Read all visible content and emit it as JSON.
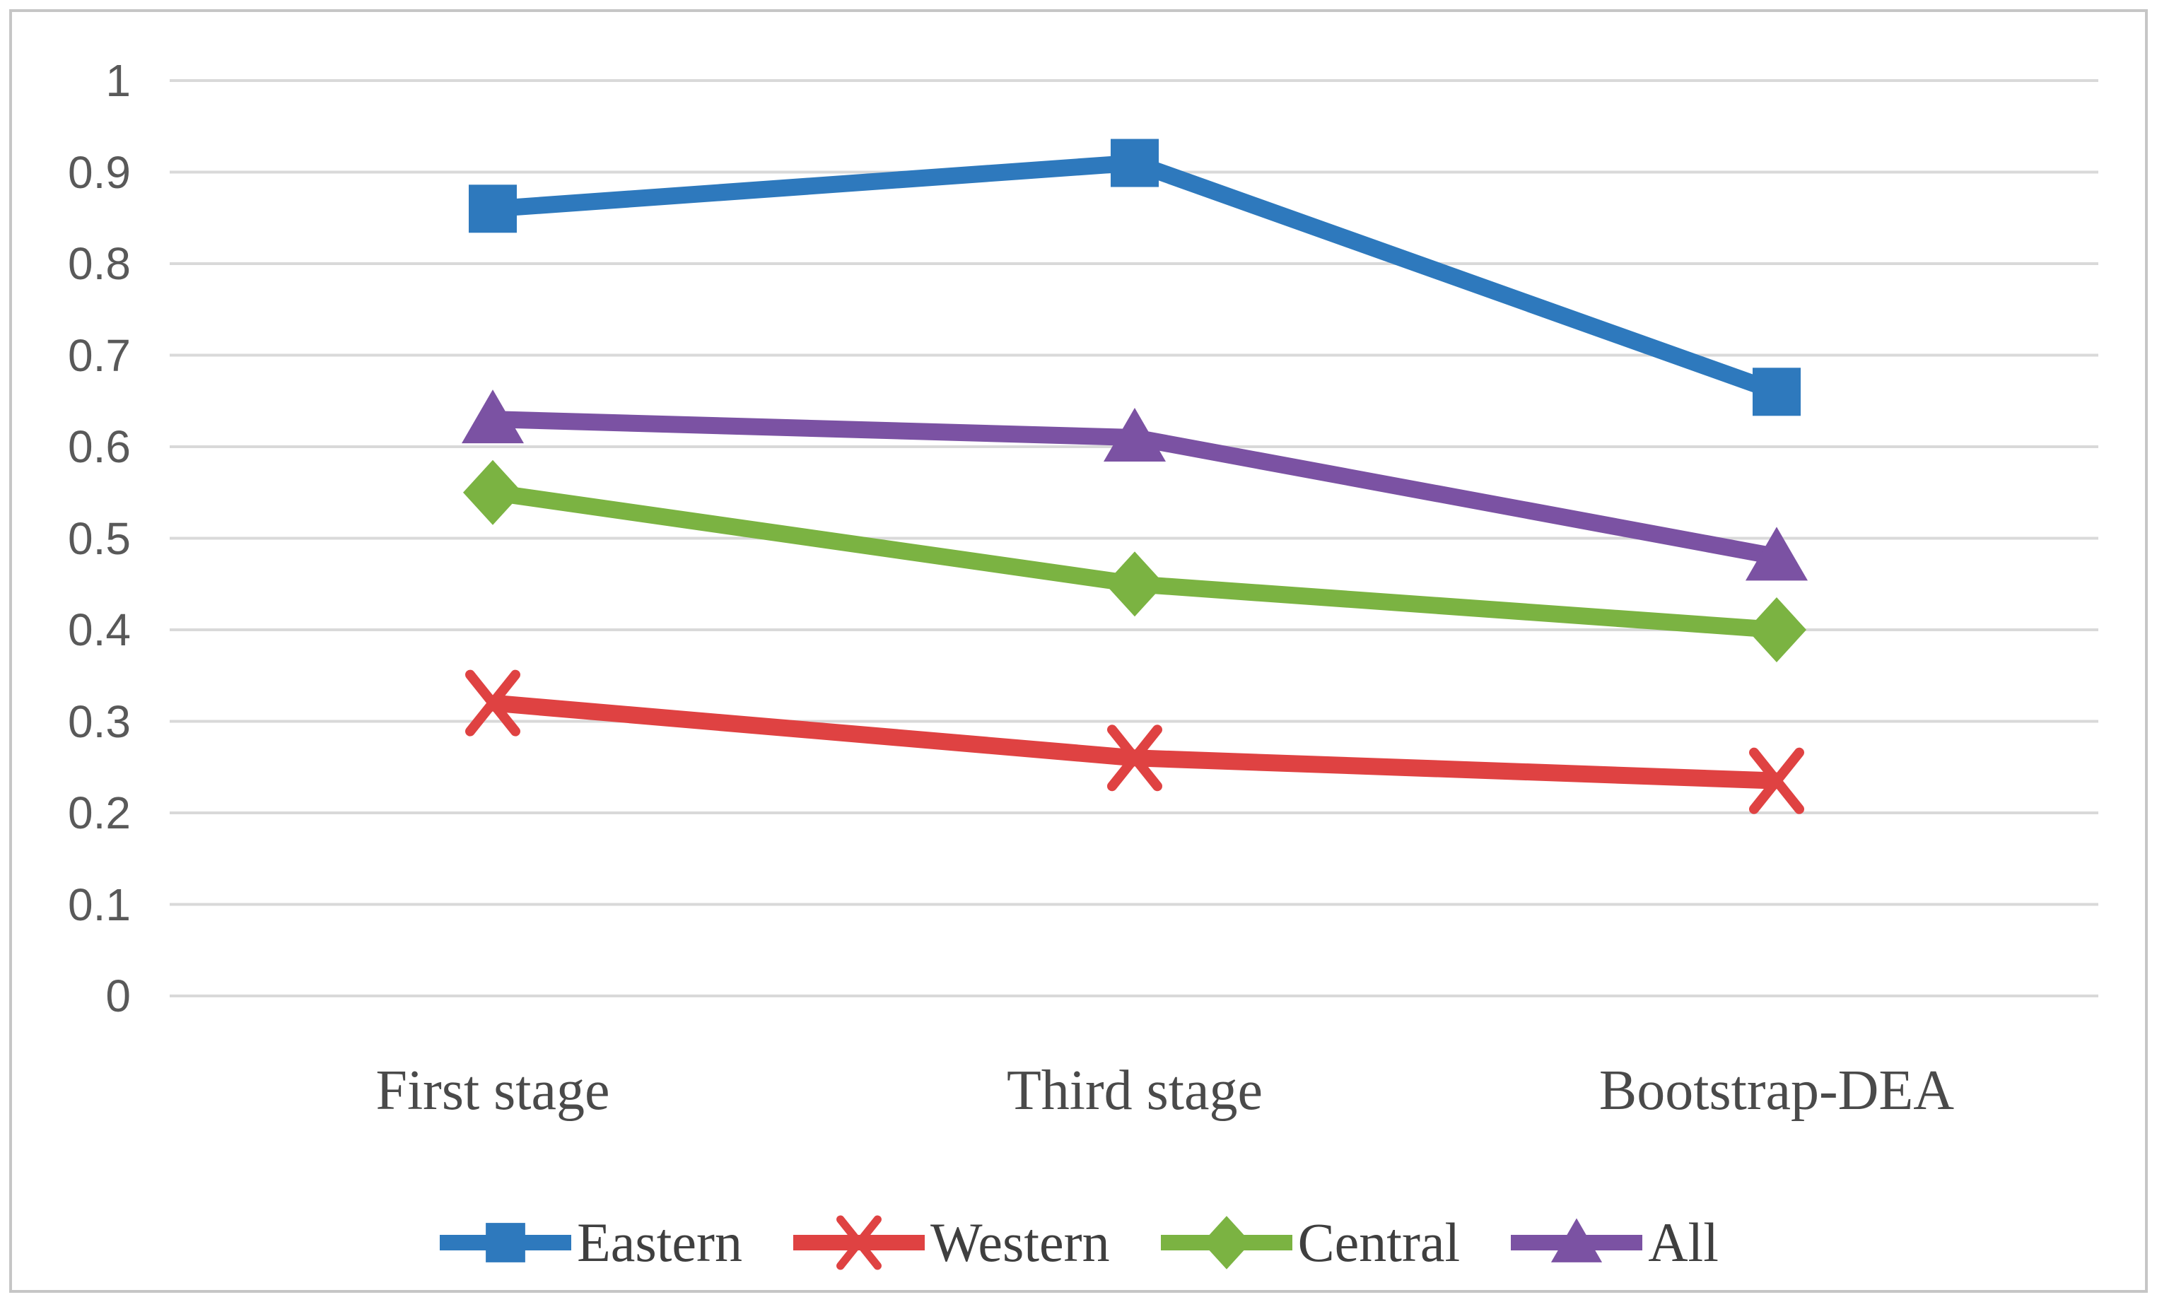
{
  "figure": {
    "kind": "excel-style line chart figure",
    "background": "#ffffff",
    "border_color": "#c6c6c6"
  },
  "chart_data": {
    "type": "line",
    "title": "",
    "xlabel": "",
    "ylabel": "",
    "categories": [
      "First stage",
      "Third stage",
      "Bootstrap-DEA"
    ],
    "series": [
      {
        "name": "Eastern",
        "color": "#2e79bd",
        "marker": "square",
        "values": [
          0.86,
          0.91,
          0.66
        ]
      },
      {
        "name": "Western",
        "color": "#df4242",
        "marker": "x",
        "values": [
          0.32,
          0.26,
          0.235
        ]
      },
      {
        "name": "Central",
        "color": "#7bb342",
        "marker": "diamond",
        "values": [
          0.55,
          0.45,
          0.4
        ]
      },
      {
        "name": "All",
        "color": "#7b52a3",
        "marker": "triangle",
        "values": [
          0.63,
          0.61,
          0.48
        ]
      }
    ],
    "ylim": [
      0,
      1
    ],
    "y_tick_step": 0.1,
    "y_ticks": [
      "1",
      "0.9",
      "0.8",
      "0.7",
      "0.6",
      "0.5",
      "0.4",
      "0.3",
      "0.2",
      "0.1",
      "0"
    ],
    "grid": "horizontal",
    "gridline_color": "#d9d9d9",
    "tick_label_color": "#595959",
    "category_label_color": "#4a4a4a",
    "legend_position": "bottom",
    "legend_text_color": "#3f3f3f"
  }
}
